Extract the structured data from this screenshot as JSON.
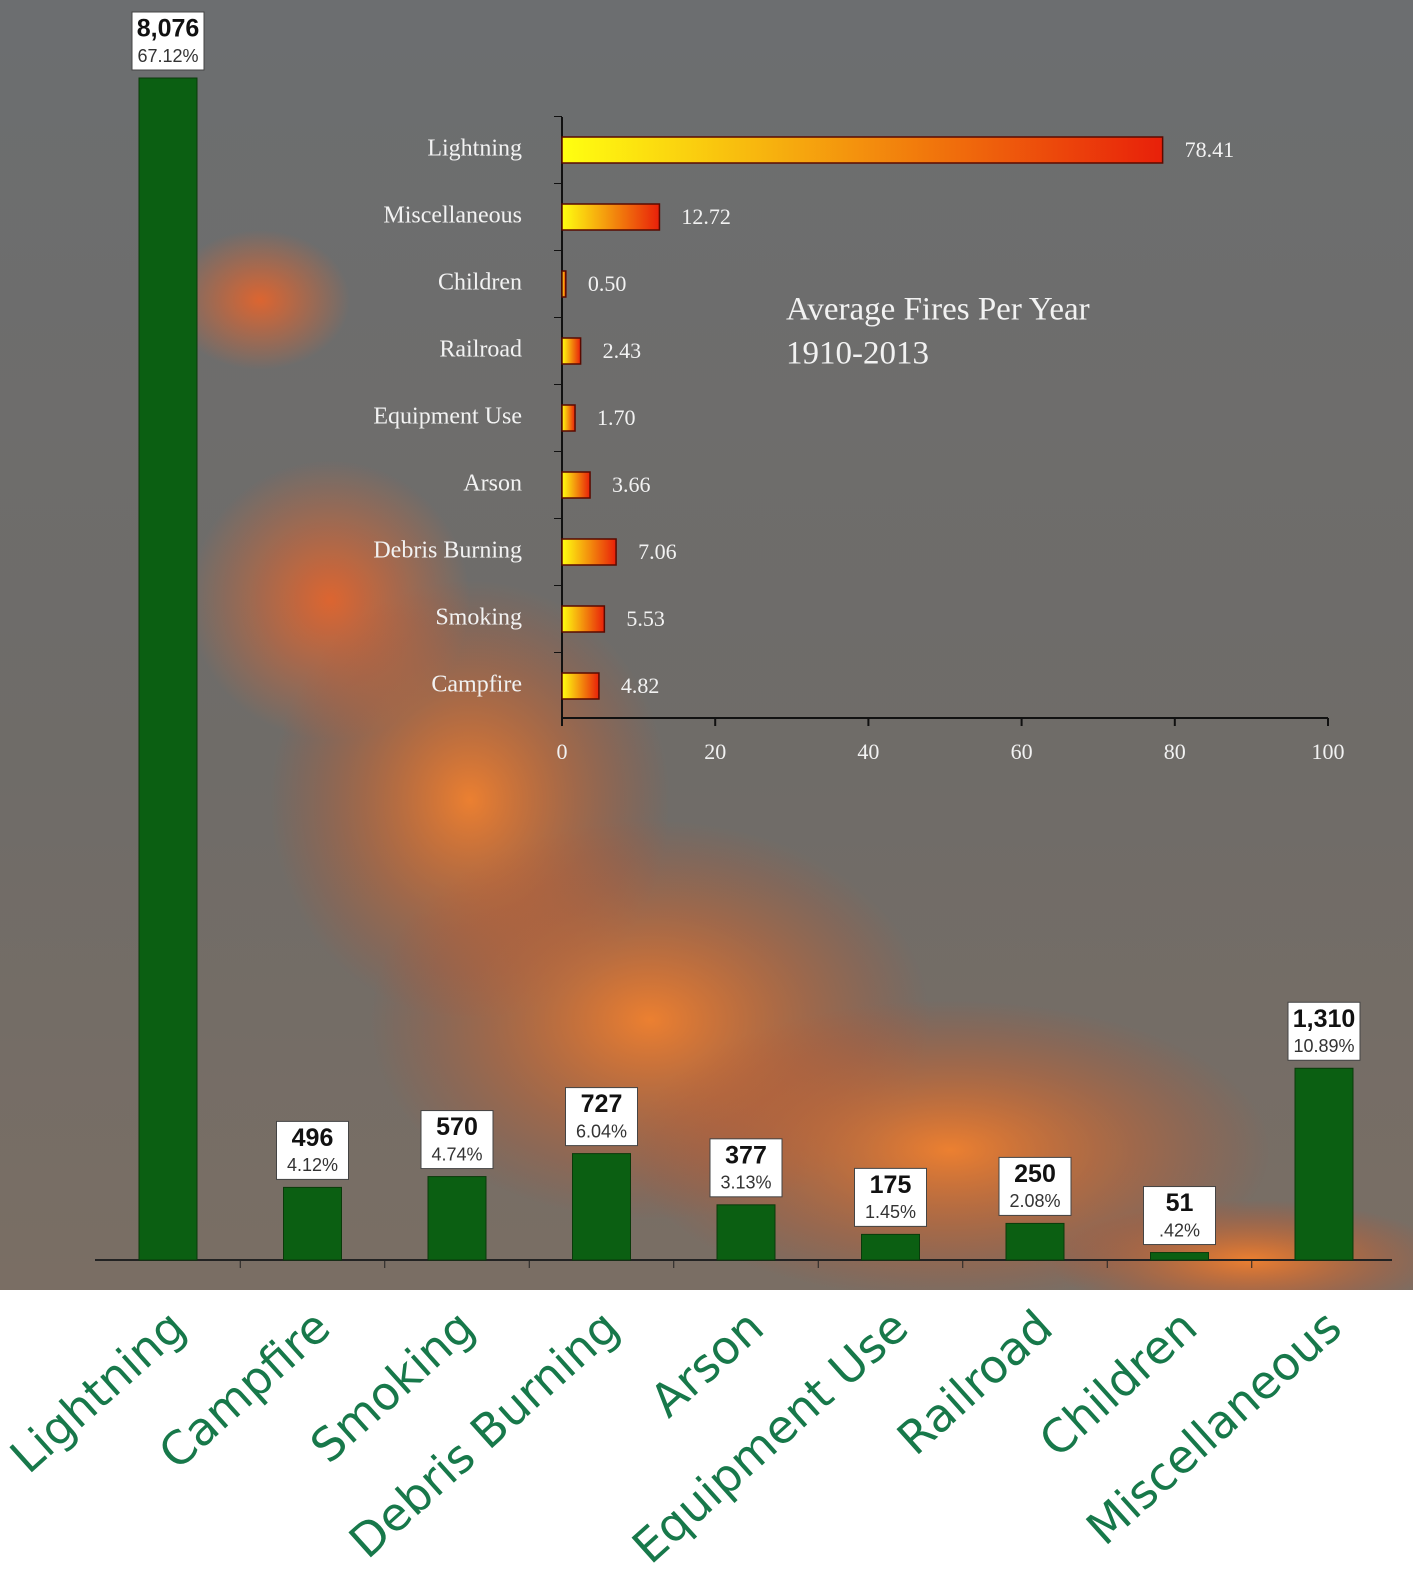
{
  "chart_data": [
    {
      "type": "bar",
      "categories": [
        "Lightning",
        "Campfire",
        "Smoking",
        "Debris Burning",
        "Arson",
        "Equipment Use",
        "Railroad",
        "Children",
        "Miscellaneous"
      ],
      "values": [
        8076,
        496,
        570,
        727,
        377,
        175,
        250,
        51,
        1310
      ],
      "value_labels": [
        "8,076",
        "496",
        "570",
        "727",
        "377",
        "175",
        "250",
        "51",
        "1,310"
      ],
      "percents": [
        67.12,
        4.12,
        4.74,
        6.04,
        3.13,
        1.45,
        2.08,
        0.42,
        10.89
      ],
      "percent_labels": [
        "67.12%",
        "4.12%",
        "4.74%",
        "6.04%",
        "3.13%",
        "1.45%",
        "2.08%",
        ".42%",
        "10.89%"
      ],
      "color": "#0b5f12"
    },
    {
      "type": "barh",
      "title": "Average Fires Per Year",
      "subtitle": "1910-2013",
      "categories": [
        "Lightning",
        "Miscellaneous",
        "Children",
        "Railroad",
        "Equipment Use",
        "Arson",
        "Debris Burning",
        "Smoking",
        "Campfire"
      ],
      "values": [
        78.41,
        12.72,
        0.5,
        2.43,
        1.7,
        3.66,
        7.06,
        5.53,
        4.82
      ],
      "value_labels": [
        "78.41",
        "12.72",
        "0.50",
        "2.43",
        "1.70",
        "3.66",
        "7.06",
        "5.53",
        "4.82"
      ],
      "xlim": [
        0,
        100
      ],
      "xticks": [
        0,
        20,
        40,
        60,
        80,
        100
      ],
      "gradient": [
        "#ffff10",
        "#e8200a"
      ]
    }
  ]
}
